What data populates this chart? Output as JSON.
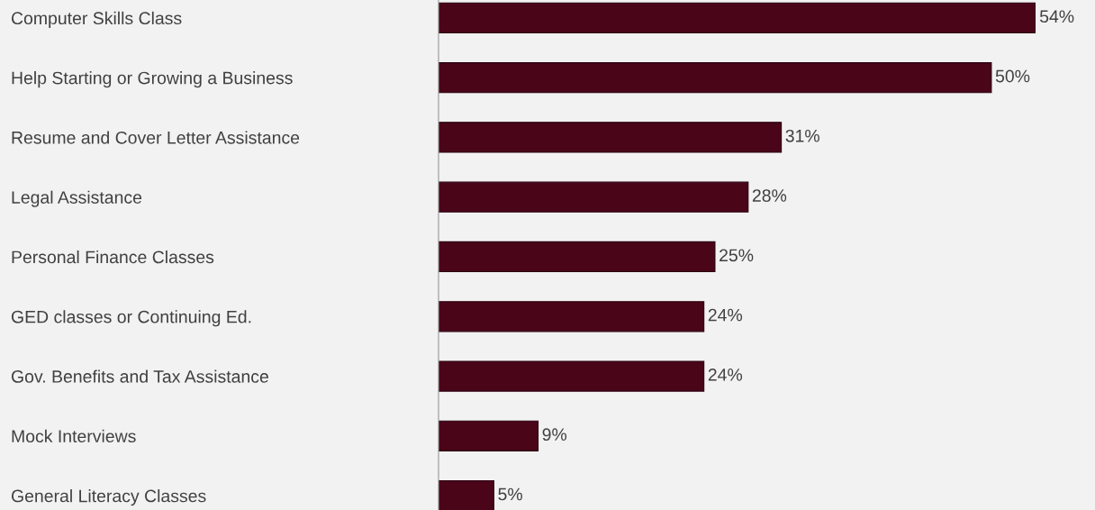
{
  "chart_data": {
    "type": "bar",
    "orientation": "horizontal",
    "categories": [
      "Computer Skills Class",
      "Help Starting or Growing a Business",
      "Resume and Cover Letter Assistance",
      "Legal Assistance",
      "Personal Finance Classes",
      "GED classes or Continuing Ed.",
      "Gov. Benefits and Tax Assistance",
      "Mock Interviews",
      "General Literacy Classes"
    ],
    "values": [
      54,
      50,
      31,
      28,
      25,
      24,
      24,
      9,
      5
    ],
    "value_labels": [
      "54%",
      "50%",
      "31%",
      "28%",
      "25%",
      "24%",
      "24%",
      "9%",
      "5%"
    ],
    "color": "#4a0519",
    "grid": false,
    "legend": false
  }
}
